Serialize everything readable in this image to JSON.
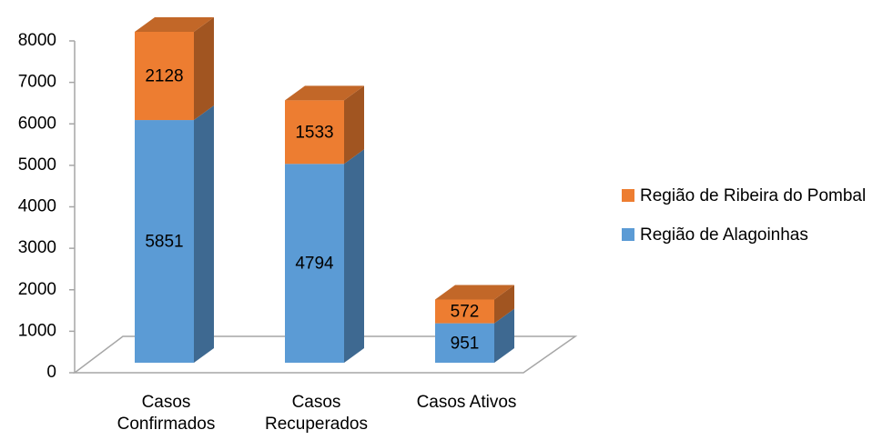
{
  "chart_data": {
    "type": "bar3d_stacked",
    "categories": [
      "Casos Confirmados",
      "Casos Recuperados",
      "Casos Ativos"
    ],
    "series": [
      {
        "name": "Região de Alagoinhas",
        "color": "#5b9bd5",
        "values": [
          5851,
          4794,
          951
        ]
      },
      {
        "name": "Região de Ribeira do Pombal",
        "color": "#ed7d31",
        "values": [
          2128,
          1533,
          572
        ]
      }
    ],
    "ylim": [
      0,
      8000
    ],
    "yticks": [
      0,
      1000,
      2000,
      3000,
      4000,
      5000,
      6000,
      7000,
      8000
    ],
    "legend": "right"
  }
}
